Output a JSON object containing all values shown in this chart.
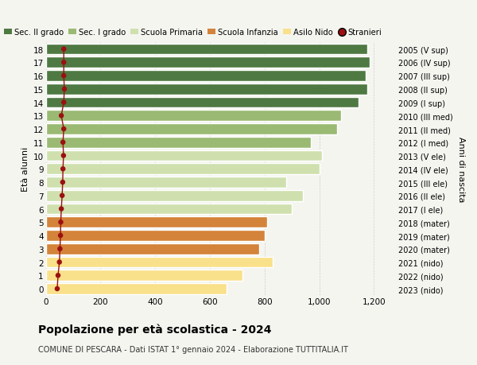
{
  "ages": [
    0,
    1,
    2,
    3,
    4,
    5,
    6,
    7,
    8,
    9,
    10,
    11,
    12,
    13,
    14,
    15,
    16,
    17,
    18
  ],
  "right_labels": [
    "2023 (nido)",
    "2022 (nido)",
    "2021 (nido)",
    "2020 (mater)",
    "2019 (mater)",
    "2018 (mater)",
    "2017 (I ele)",
    "2016 (II ele)",
    "2015 (III ele)",
    "2014 (IV ele)",
    "2013 (V ele)",
    "2012 (I med)",
    "2011 (II med)",
    "2010 (III med)",
    "2009 (I sup)",
    "2008 (II sup)",
    "2007 (III sup)",
    "2006 (IV sup)",
    "2005 (V sup)"
  ],
  "bar_values": [
    660,
    720,
    830,
    780,
    800,
    810,
    900,
    940,
    880,
    1000,
    1010,
    970,
    1065,
    1080,
    1145,
    1175,
    1170,
    1185,
    1175
  ],
  "bar_colors": [
    "#f9e08a",
    "#f9e08a",
    "#f9e08a",
    "#d4833a",
    "#d4833a",
    "#d4833a",
    "#cfe0ae",
    "#cfe0ae",
    "#cfe0ae",
    "#cfe0ae",
    "#cfe0ae",
    "#9aba73",
    "#9aba73",
    "#9aba73",
    "#4f7942",
    "#4f7942",
    "#4f7942",
    "#4f7942",
    "#4f7942"
  ],
  "stranieri_values": [
    42,
    45,
    50,
    52,
    54,
    55,
    57,
    60,
    62,
    63,
    65,
    63,
    66,
    57,
    66,
    68,
    66,
    66,
    66
  ],
  "legend_labels": [
    "Sec. II grado",
    "Sec. I grado",
    "Scuola Primaria",
    "Scuola Infanzia",
    "Asilo Nido",
    "Stranieri"
  ],
  "legend_colors": [
    "#4f7942",
    "#9aba73",
    "#cfe0ae",
    "#d4833a",
    "#f9e08a",
    "#9b1010"
  ],
  "title": "Popolazione per età scolastica - 2024",
  "subtitle": "COMUNE DI PESCARA - Dati ISTAT 1° gennaio 2024 - Elaborazione TUTTITALIA.IT",
  "ylabel_left": "Età alunni",
  "ylabel_right": "Anni di nascita",
  "xlim": [
    0,
    1280
  ],
  "xticks": [
    0,
    200,
    400,
    600,
    800,
    1000,
    1200
  ],
  "xtick_labels": [
    "0",
    "200",
    "400",
    "600",
    "800",
    "1,000",
    "1,200"
  ],
  "background_color": "#f5f5f0",
  "bar_height": 0.82,
  "stranieri_dot_color": "#9b1010",
  "stranieri_line_color": "#9b1010"
}
